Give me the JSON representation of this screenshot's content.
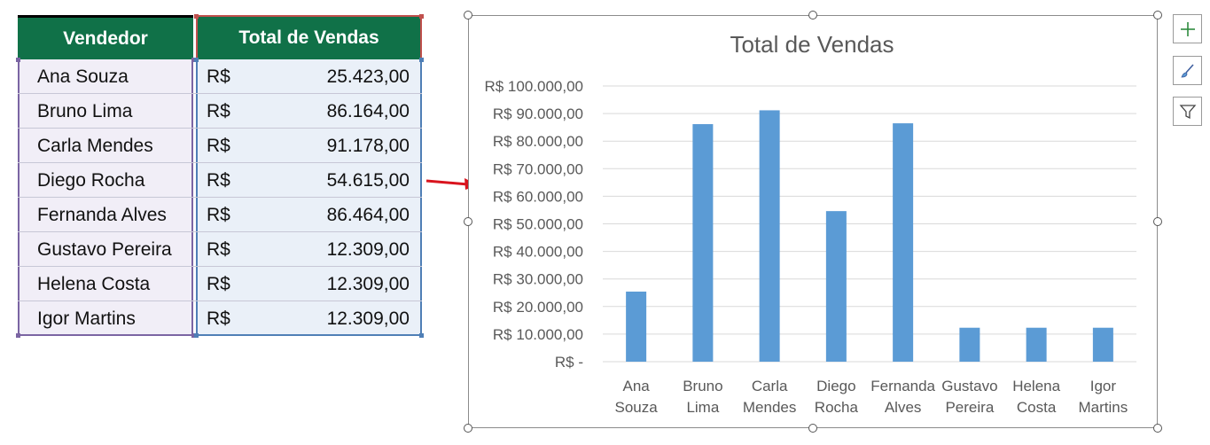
{
  "table": {
    "headers": {
      "vendedor": "Vendedor",
      "total": "Total de Vendas"
    },
    "rows": [
      {
        "name": "Ana Souza",
        "currency": "R$",
        "value": "25.423,00"
      },
      {
        "name": "Bruno Lima",
        "currency": "R$",
        "value": "86.164,00"
      },
      {
        "name": "Carla Mendes",
        "currency": "R$",
        "value": "91.178,00"
      },
      {
        "name": "Diego Rocha",
        "currency": "R$",
        "value": "54.615,00"
      },
      {
        "name": "Fernanda Alves",
        "currency": "R$",
        "value": "86.464,00"
      },
      {
        "name": "Gustavo Pereira",
        "currency": "R$",
        "value": "12.309,00"
      },
      {
        "name": "Helena Costa",
        "currency": "R$",
        "value": "12.309,00"
      },
      {
        "name": "Igor Martins",
        "currency": "R$",
        "value": "12.309,00"
      }
    ]
  },
  "colors": {
    "header_bg": "#107148",
    "bar": "#5b9bd5",
    "arrow": "#d9141e",
    "gridline": "#d9d9d9"
  },
  "chart_data": {
    "type": "bar",
    "title": "Total de Vendas",
    "categories": [
      [
        "Ana",
        "Souza"
      ],
      [
        "Bruno",
        "Lima"
      ],
      [
        "Carla",
        "Mendes"
      ],
      [
        "Diego",
        "Rocha"
      ],
      [
        "Fernanda",
        "Alves"
      ],
      [
        "Gustavo",
        "Pereira"
      ],
      [
        "Helena",
        "Costa"
      ],
      [
        "Igor",
        "Martins"
      ]
    ],
    "values": [
      25423,
      86164,
      91178,
      54615,
      86464,
      12309,
      12309,
      12309
    ],
    "ylim": [
      0,
      100000
    ],
    "yticks": [
      0,
      10000,
      20000,
      30000,
      40000,
      50000,
      60000,
      70000,
      80000,
      90000,
      100000
    ],
    "ytick_labels": [
      "R$ -",
      "R$ 10.000,00",
      "R$ 20.000,00",
      "R$ 30.000,00",
      "R$ 40.000,00",
      "R$ 50.000,00",
      "R$ 60.000,00",
      "R$ 70.000,00",
      "R$ 80.000,00",
      "R$ 90.000,00",
      "R$ 100.000,00"
    ],
    "grid": true,
    "legend": "none"
  },
  "chart_tools": {
    "add_element_icon": "plus-icon",
    "style_icon": "brush-icon",
    "filter_icon": "funnel-icon"
  }
}
